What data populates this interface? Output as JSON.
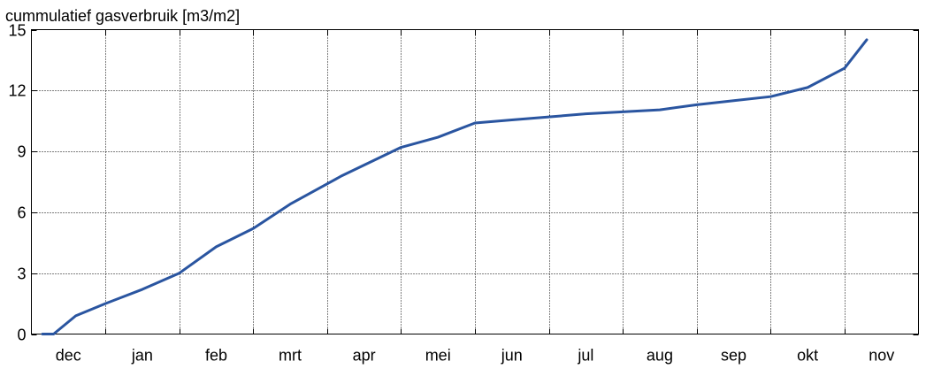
{
  "chart_data": {
    "type": "line",
    "title": "cummulatief gasverbruik [m3/m2]",
    "xlabel": "",
    "ylabel": "",
    "categories": [
      "dec",
      "jan",
      "feb",
      "mrt",
      "apr",
      "mei",
      "jun",
      "jul",
      "aug",
      "sep",
      "okt",
      "nov"
    ],
    "xlim": [
      0,
      12
    ],
    "ylim": [
      0,
      15
    ],
    "yticks": [
      "0",
      "3",
      "6",
      "9",
      "12",
      "15"
    ],
    "grid": true,
    "line_color": "#2a55a0",
    "series": [
      {
        "x": [
          0.15,
          0.3,
          0.6,
          1.0,
          1.5,
          2.0,
          2.5,
          3.0,
          3.5,
          4.0,
          4.2,
          5.0,
          5.5,
          6.0,
          6.5,
          7.0,
          7.5,
          8.0,
          8.5,
          9.0,
          9.5,
          10.0,
          10.5,
          11.0,
          11.3
        ],
        "y": [
          0.0,
          0.0,
          0.9,
          1.5,
          2.2,
          3.0,
          4.3,
          5.2,
          6.4,
          7.4,
          7.8,
          9.2,
          9.7,
          10.4,
          10.55,
          10.7,
          10.85,
          10.95,
          11.05,
          11.3,
          11.5,
          11.7,
          12.15,
          13.1,
          14.5
        ]
      }
    ]
  }
}
